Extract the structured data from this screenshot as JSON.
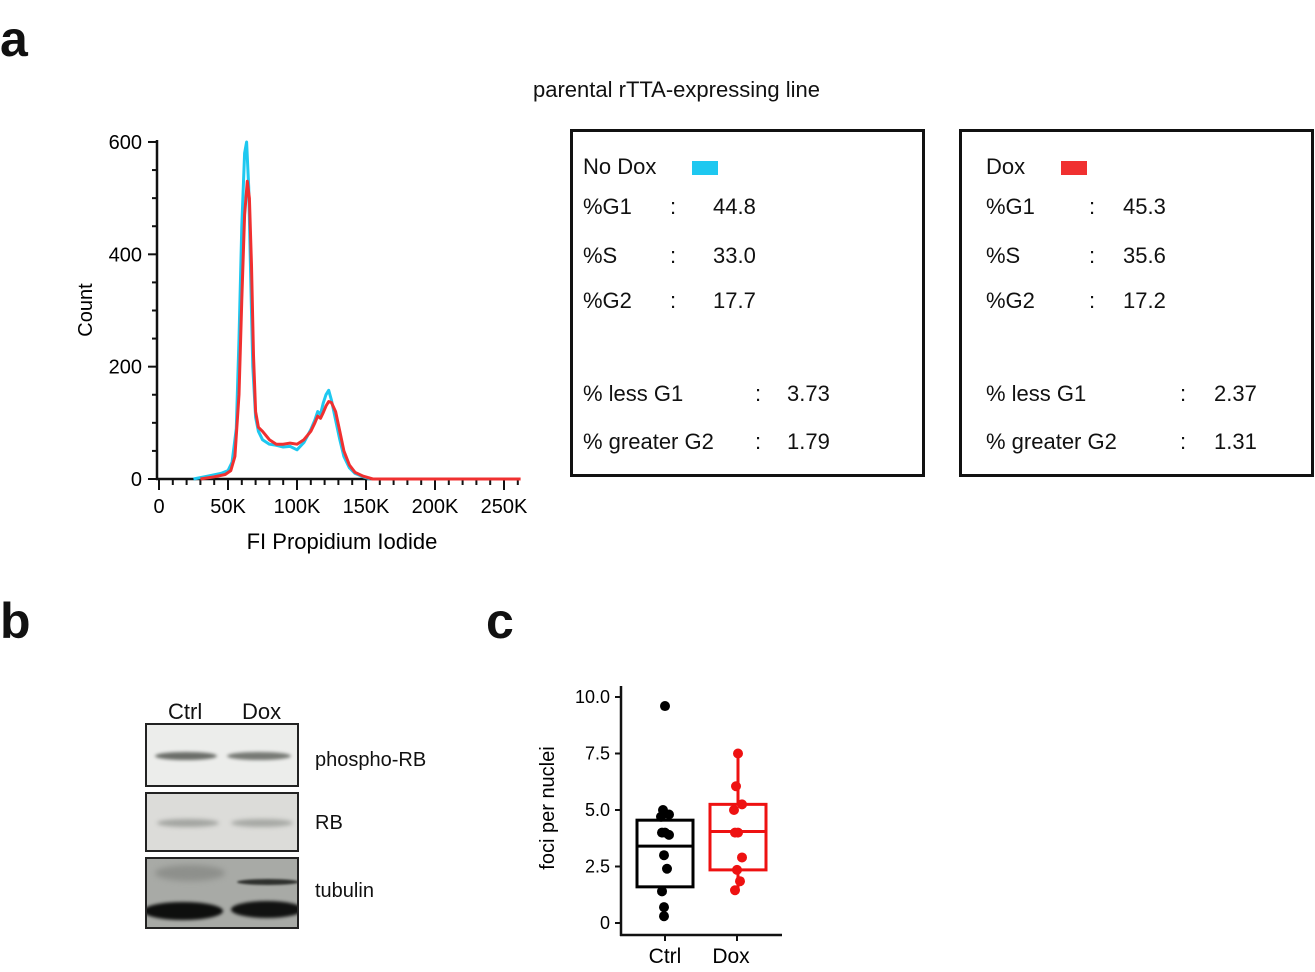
{
  "panel_labels": {
    "a": "a",
    "b": "b",
    "c": "c"
  },
  "panel_a": {
    "title": "parental rTTA-expressing line",
    "boxes": [
      {
        "name": "No Dox",
        "color": "#1ec8f0",
        "rows": [
          {
            "label": "%G1",
            "value": "44.8"
          },
          {
            "label": "%S",
            "value": "33.0"
          },
          {
            "label": "%G2",
            "value": "17.7"
          }
        ],
        "extra": [
          {
            "label": "% less G1",
            "value": "3.73"
          },
          {
            "label": "% greater G2",
            "value": "1.79"
          }
        ]
      },
      {
        "name": "Dox",
        "color": "#f03030",
        "rows": [
          {
            "label": "%G1",
            "value": "45.3"
          },
          {
            "label": "%S",
            "value": "35.6"
          },
          {
            "label": "%G2",
            "value": "17.2"
          }
        ],
        "extra": [
          {
            "label": "% less G1",
            "value": "2.37"
          },
          {
            "label": "% greater G2",
            "value": "1.31"
          }
        ]
      }
    ],
    "colon": ":"
  },
  "panel_b": {
    "lanes": [
      "Ctrl",
      "Dox"
    ],
    "bands": [
      "phospho-RB",
      "RB",
      "tubulin"
    ]
  },
  "chart_data": [
    {
      "type": "line",
      "xlabel": "FI Propidium Iodide",
      "ylabel": "Count",
      "xlim": [
        0,
        260000
      ],
      "ylim": [
        0,
        600
      ],
      "xticks": [
        "0",
        "50K",
        "100K",
        "150K",
        "200K",
        "250K"
      ],
      "xtick_values": [
        0,
        50000,
        100000,
        150000,
        200000,
        250000
      ],
      "yticks": [
        "0",
        "200",
        "400",
        "600"
      ],
      "ytick_values": [
        0,
        200,
        400,
        600
      ],
      "series": [
        {
          "color": "#1ec8f0",
          "x": [
            25000,
            35000,
            45000,
            50000,
            53000,
            56000,
            58000,
            60000,
            62000,
            63500,
            65000,
            66500,
            68000,
            70000,
            72000,
            75000,
            80000,
            85000,
            90000,
            95000,
            100000,
            105000,
            110000,
            113000,
            115000,
            117000,
            119000,
            121000,
            123000,
            125000,
            128000,
            131000,
            134000,
            138000,
            142000,
            148000,
            153000
          ],
          "y": [
            0,
            5,
            10,
            15,
            30,
            90,
            250,
            450,
            580,
            600,
            520,
            350,
            200,
            110,
            85,
            70,
            62,
            60,
            57,
            58,
            52,
            65,
            88,
            105,
            120,
            115,
            135,
            150,
            158,
            140,
            105,
            70,
            40,
            20,
            10,
            4,
            0
          ]
        },
        {
          "color": "#f03030",
          "x": [
            30000,
            40000,
            48000,
            52000,
            55000,
            58000,
            60000,
            62000,
            64000,
            65500,
            67000,
            68500,
            70000,
            72000,
            75000,
            80000,
            85000,
            90000,
            95000,
            100000,
            105000,
            110000,
            113000,
            115000,
            117000,
            119000,
            121000,
            123000,
            125000,
            128000,
            131000,
            134000,
            138000,
            142000,
            148000,
            155000,
            262000
          ],
          "y": [
            0,
            4,
            8,
            15,
            40,
            150,
            320,
            470,
            530,
            500,
            380,
            220,
            120,
            92,
            85,
            70,
            62,
            62,
            64,
            62,
            70,
            85,
            100,
            112,
            108,
            118,
            130,
            138,
            136,
            120,
            85,
            50,
            25,
            12,
            5,
            0,
            0
          ]
        }
      ]
    },
    {
      "type": "box",
      "ylabel": "foci per nuclei",
      "categories": [
        "Ctrl",
        "Dox"
      ],
      "ylim": [
        0,
        10.5
      ],
      "yticks": [
        "0",
        "2.5",
        "5.0",
        "7.5",
        "10.0"
      ],
      "ytick_values": [
        0,
        2.5,
        5.0,
        7.5,
        10.0
      ],
      "series": [
        {
          "color": "#000000",
          "box": {
            "q1": 1.6,
            "median": 3.4,
            "q3": 4.55
          },
          "points": [
            9.6,
            5.0,
            4.8,
            4.7,
            4.0,
            4.0,
            3.9,
            3.0,
            2.4,
            1.4,
            0.7,
            0.3
          ]
        },
        {
          "color": "#ee1111",
          "box": {
            "q1": 2.35,
            "median": 4.05,
            "q3": 5.25,
            "whisker_low": 1.45,
            "whisker_high": 7.5
          },
          "points": [
            7.5,
            6.05,
            5.25,
            5.0,
            4.0,
            4.0,
            2.9,
            2.35,
            1.85,
            1.45
          ]
        }
      ]
    }
  ]
}
